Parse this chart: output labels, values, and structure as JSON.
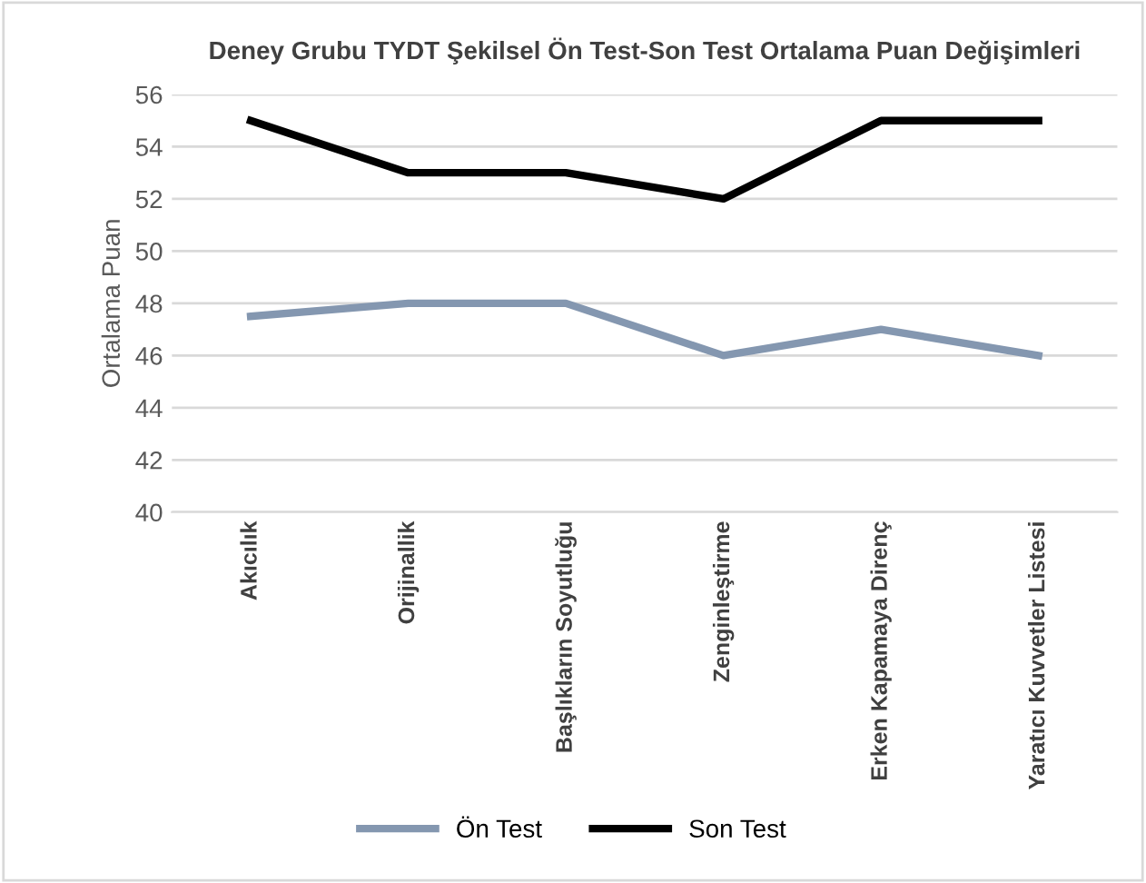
{
  "chart_data": {
    "type": "line",
    "title": "Deney Grubu TYDT Şekilsel Ön Test-Son Test Ortalama Puan Değişimleri",
    "ylabel": "Ortalama Puan",
    "categories": [
      "Akıcılık",
      "Orijinallik",
      "Başlıkların Soyutluğu",
      "Zenginleştirme",
      "Erken Kapamaya Direnç",
      "Yaratıcı Kuvvetler Listesi"
    ],
    "series": [
      {
        "name": "Ön Test",
        "color": "#8497b0",
        "values": [
          47.5,
          48,
          48,
          46,
          47,
          46
        ]
      },
      {
        "name": "Son Test",
        "color": "#000000",
        "values": [
          55,
          53,
          53,
          52,
          55,
          55
        ]
      }
    ],
    "ylim": [
      40,
      56
    ],
    "yticks": [
      40,
      42,
      44,
      46,
      48,
      50,
      52,
      54,
      56
    ],
    "grid": "y",
    "legend": "bottom",
    "marker": "none",
    "line_style": "solid"
  }
}
